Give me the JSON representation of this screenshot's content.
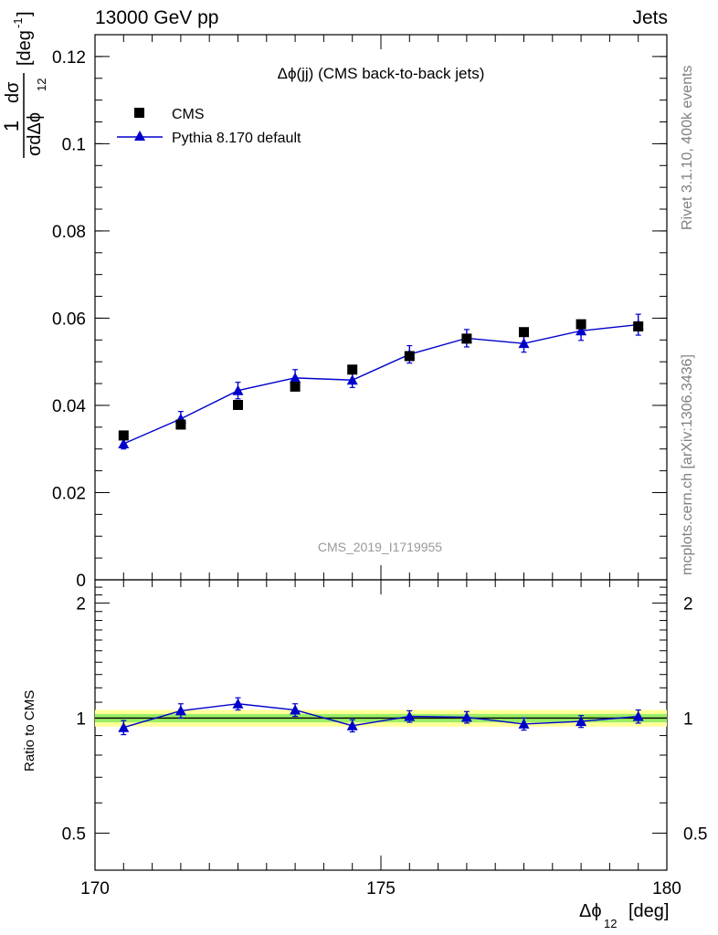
{
  "header": {
    "energy_label": "13000 GeV pp",
    "process_label": "Jets"
  },
  "side_labels": {
    "rivet": "Rivet 3.1.10,  400k events",
    "source": "mcplots.cern.ch [arXiv:1306.3436]"
  },
  "colors": {
    "data": "#000000",
    "mc": "#0000cc",
    "band_outer": "#ffff99",
    "band_inner": "#99ee66"
  },
  "chart_data": [
    {
      "type": "scatter",
      "panel": "main",
      "title": "Δϕ(jj) (CMS back-to-back jets)",
      "watermark": "CMS_2019_I1719955",
      "ylabel_main": "1",
      "ylabel_num": "dσ",
      "ylabel_den": "σdΔϕ",
      "ylabel_den_sub": "12",
      "ylabel_unit": "[deg",
      "ylabel_unit_sup": "-1",
      "ylabel_unit_close": "]",
      "xlim": [
        170,
        180
      ],
      "ylim": [
        0,
        0.125
      ],
      "yticks": [
        0,
        0.02,
        0.04,
        0.06,
        0.08,
        0.1,
        0.12
      ],
      "ytick_labels": [
        "0",
        "0.02",
        "0.04",
        "0.06",
        "0.08",
        "0.1",
        "0.12"
      ],
      "legend_position": "top-left",
      "series": [
        {
          "name": "CMS",
          "marker": "square",
          "x": [
            170.5,
            171.5,
            172.5,
            173.5,
            174.5,
            175.5,
            176.5,
            177.5,
            178.5,
            179.5
          ],
          "y": [
            0.0331,
            0.0356,
            0.0401,
            0.0443,
            0.0482,
            0.0513,
            0.0553,
            0.0568,
            0.0586,
            0.0581
          ]
        },
        {
          "name": "Pythia 8.170 default",
          "marker": "triangle",
          "x": [
            170.5,
            171.5,
            172.5,
            173.5,
            174.5,
            175.5,
            176.5,
            177.5,
            178.5,
            179.5
          ],
          "y": [
            0.0312,
            0.0369,
            0.0434,
            0.0463,
            0.0458,
            0.0517,
            0.0554,
            0.0542,
            0.0571,
            0.0585
          ],
          "yerr": [
            0.0012,
            0.0017,
            0.0019,
            0.0019,
            0.0017,
            0.002,
            0.002,
            0.002,
            0.0022,
            0.0024
          ]
        }
      ]
    },
    {
      "type": "line",
      "panel": "ratio",
      "ylabel": "Ratio to CMS",
      "xlabel": "Δϕ",
      "xlabel_sub": "12",
      "xlabel_unit": "[deg]",
      "xlim": [
        170,
        180
      ],
      "xticks": [
        170,
        175,
        180
      ],
      "xtick_labels": [
        "170",
        "175",
        "180"
      ],
      "ylim": [
        0.4,
        2.3
      ],
      "yticks": [
        0.5,
        1,
        2
      ],
      "ytick_labels": [
        "0.5",
        "1",
        "2"
      ],
      "scale": "log",
      "series": [
        {
          "name": "Pythia 8.170 default",
          "x": [
            170.5,
            171.5,
            172.5,
            173.5,
            174.5,
            175.5,
            176.5,
            177.5,
            178.5,
            179.5
          ],
          "y": [
            0.945,
            1.045,
            1.09,
            1.05,
            0.955,
            1.01,
            1.005,
            0.965,
            0.98,
            1.01
          ],
          "yerr": [
            0.04,
            0.045,
            0.04,
            0.04,
            0.035,
            0.035,
            0.035,
            0.035,
            0.035,
            0.04
          ]
        }
      ],
      "band_outer_halfwidth": 0.05,
      "band_inner_halfwidth": 0.025
    }
  ]
}
